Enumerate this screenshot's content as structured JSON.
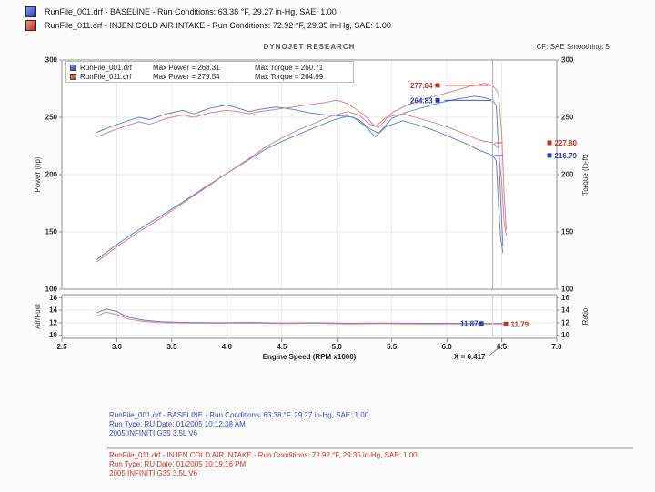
{
  "header": {
    "runs": [
      {
        "file": "RunFile_001.drf",
        "label": "BASELINE",
        "line": "RunFile_001.drf - BASELINE  -  Run Conditions: 63.38 °F, 29.27 in-Hg, SAE: 1.00",
        "color": "#2636b8"
      },
      {
        "file": "RunFile_011.drf",
        "label": "INJEN COLD AIR INTAKE",
        "line": "RunFile_011.drf - INJEN COLD AIR INTAKE  -  Run Conditions: 72.92 °F, 29.35 in-Hg, SAE: 1.00",
        "color": "#c02a1a"
      }
    ]
  },
  "chart_data": {
    "type": "line",
    "title": "DYNOJET RESEARCH",
    "correction_label": "CF: SAE   Smoothing: 5",
    "xlabel": "Engine Speed (RPM x1000)",
    "xlim": [
      2.5,
      7.0
    ],
    "xticks": [
      2.5,
      3.0,
      3.5,
      4.0,
      4.5,
      5.0,
      5.5,
      6.0,
      6.5,
      7.0
    ],
    "grid": true,
    "cursor": {
      "x": 6.417,
      "label": "X = 6.417"
    },
    "legend_box": {
      "rows": [
        {
          "file": "RunFile_001.drf",
          "power": "Max Power = 268.31",
          "torque": "Max Torque = 260.71",
          "color": "#2a3fbf"
        },
        {
          "file": "RunFile_011.drf",
          "power": "Max Power = 279.54",
          "torque": "Max Torque = 264.99",
          "color": "#c63326"
        }
      ]
    },
    "panels": [
      {
        "name": "power-torque",
        "ylabel_left": "Power (hp)",
        "ylabel_right": "Torque (lb-ft)",
        "ylim": [
          100,
          300
        ],
        "yticks": [
          300,
          250,
          200,
          150,
          100
        ],
        "series": [
          {
            "name": "baseline-power",
            "run": "RunFile_001.drf",
            "color": "#6b84c8",
            "points": [
              [
                2.82,
                126
              ],
              [
                3.0,
                139
              ],
              [
                3.2,
                152
              ],
              [
                3.4,
                164
              ],
              [
                3.6,
                176
              ],
              [
                3.8,
                189
              ],
              [
                4.0,
                201
              ],
              [
                4.2,
                213
              ],
              [
                4.35,
                222
              ],
              [
                4.5,
                229
              ],
              [
                4.65,
                235
              ],
              [
                4.8,
                241
              ],
              [
                4.95,
                247
              ],
              [
                5.1,
                251
              ],
              [
                5.2,
                248
              ],
              [
                5.3,
                240
              ],
              [
                5.38,
                236
              ],
              [
                5.5,
                249
              ],
              [
                5.65,
                255
              ],
              [
                5.8,
                259
              ],
              [
                5.95,
                263
              ],
              [
                6.1,
                266
              ],
              [
                6.25,
                268.3
              ],
              [
                6.35,
                267
              ],
              [
                6.417,
                264.8
              ],
              [
                6.45,
                260
              ],
              [
                6.47,
                225
              ],
              [
                6.49,
                180
              ],
              [
                6.51,
                138
              ]
            ]
          },
          {
            "name": "injen-power",
            "run": "RunFile_011.drf",
            "color": "#d08a8a",
            "points": [
              [
                2.82,
                124
              ],
              [
                3.0,
                137
              ],
              [
                3.2,
                150
              ],
              [
                3.4,
                162
              ],
              [
                3.6,
                175
              ],
              [
                3.8,
                188
              ],
              [
                4.0,
                201
              ],
              [
                4.2,
                214
              ],
              [
                4.35,
                224
              ],
              [
                4.5,
                232
              ],
              [
                4.65,
                239
              ],
              [
                4.8,
                245
              ],
              [
                4.95,
                251
              ],
              [
                5.1,
                255
              ],
              [
                5.2,
                252
              ],
              [
                5.3,
                244
              ],
              [
                5.38,
                241
              ],
              [
                5.5,
                254
              ],
              [
                5.65,
                261
              ],
              [
                5.8,
                266
              ],
              [
                5.95,
                270
              ],
              [
                6.1,
                274
              ],
              [
                6.25,
                278
              ],
              [
                6.35,
                279.5
              ],
              [
                6.417,
                277.8
              ],
              [
                6.47,
                271
              ],
              [
                6.5,
                235
              ],
              [
                6.52,
                185
              ],
              [
                6.54,
                152
              ]
            ]
          },
          {
            "name": "baseline-torque",
            "run": "RunFile_001.drf",
            "color": "#6b84c8",
            "points": [
              [
                2.82,
                237
              ],
              [
                2.95,
                242
              ],
              [
                3.1,
                247
              ],
              [
                3.2,
                250
              ],
              [
                3.3,
                248
              ],
              [
                3.45,
                253
              ],
              [
                3.6,
                256
              ],
              [
                3.7,
                253
              ],
              [
                3.85,
                258
              ],
              [
                4.0,
                260.7
              ],
              [
                4.1,
                258
              ],
              [
                4.2,
                255
              ],
              [
                4.3,
                257
              ],
              [
                4.45,
                259
              ],
              [
                4.6,
                257
              ],
              [
                4.75,
                254
              ],
              [
                4.9,
                252
              ],
              [
                5.05,
                251
              ],
              [
                5.15,
                250
              ],
              [
                5.25,
                243
              ],
              [
                5.35,
                233
              ],
              [
                5.45,
                242
              ],
              [
                5.6,
                247
              ],
              [
                5.75,
                243
              ],
              [
                5.9,
                238
              ],
              [
                6.05,
                232
              ],
              [
                6.2,
                226
              ],
              [
                6.3,
                221
              ],
              [
                6.417,
                216.8
              ],
              [
                6.45,
                212
              ],
              [
                6.47,
                175
              ],
              [
                6.49,
                145
              ],
              [
                6.51,
                132
              ]
            ]
          },
          {
            "name": "injen-torque",
            "run": "RunFile_011.drf",
            "color": "#d08a8a",
            "points": [
              [
                2.82,
                233
              ],
              [
                2.95,
                238
              ],
              [
                3.1,
                243
              ],
              [
                3.2,
                246
              ],
              [
                3.3,
                244
              ],
              [
                3.45,
                249
              ],
              [
                3.6,
                252
              ],
              [
                3.7,
                250
              ],
              [
                3.85,
                254
              ],
              [
                4.0,
                256
              ],
              [
                4.1,
                255
              ],
              [
                4.2,
                253
              ],
              [
                4.3,
                255
              ],
              [
                4.45,
                257
              ],
              [
                4.6,
                259
              ],
              [
                4.75,
                261
              ],
              [
                4.9,
                263
              ],
              [
                5.0,
                265
              ],
              [
                5.1,
                262
              ],
              [
                5.25,
                252
              ],
              [
                5.35,
                242
              ],
              [
                5.45,
                250
              ],
              [
                5.6,
                253
              ],
              [
                5.75,
                249
              ],
              [
                5.9,
                245
              ],
              [
                6.05,
                240
              ],
              [
                6.2,
                234
              ],
              [
                6.3,
                230
              ],
              [
                6.417,
                227.8
              ],
              [
                6.47,
                223
              ],
              [
                6.5,
                192
              ],
              [
                6.52,
                160
              ],
              [
                6.54,
                147
              ]
            ]
          }
        ],
        "cursor_labels": [
          {
            "text": "277.84",
            "value": 277.84,
            "color": "#c63326",
            "side": "left"
          },
          {
            "text": "264.83",
            "value": 264.83,
            "color": "#2a3fbf",
            "side": "left"
          },
          {
            "text": "227.80",
            "value": 227.8,
            "color": "#c63326",
            "side": "right"
          },
          {
            "text": "216.79",
            "value": 216.79,
            "color": "#2a3fbf",
            "side": "right"
          }
        ]
      },
      {
        "name": "air-fuel",
        "ylabel_left": "Air/Fuel",
        "ylabel_right": "Ratio",
        "ylim": [
          9.5,
          16.5
        ],
        "yticks": [
          16,
          14,
          12,
          10
        ],
        "series": [
          {
            "name": "baseline-afr",
            "run": "RunFile_001.drf",
            "color": "#6b84c8",
            "points": [
              [
                2.82,
                13.6
              ],
              [
                2.9,
                14.2
              ],
              [
                3.0,
                13.8
              ],
              [
                3.1,
                12.9
              ],
              [
                3.25,
                12.4
              ],
              [
                3.4,
                12.15
              ],
              [
                3.6,
                12.05
              ],
              [
                3.9,
                12.0
              ],
              [
                4.2,
                12.05
              ],
              [
                4.5,
                11.95
              ],
              [
                4.8,
                12.0
              ],
              [
                5.1,
                11.9
              ],
              [
                5.4,
                11.95
              ],
              [
                5.7,
                11.9
              ],
              [
                6.0,
                11.9
              ],
              [
                6.2,
                11.88
              ],
              [
                6.417,
                11.87
              ],
              [
                6.5,
                11.9
              ]
            ]
          },
          {
            "name": "injen-afr",
            "run": "RunFile_011.drf",
            "color": "#d08a8a",
            "points": [
              [
                2.82,
                13.1
              ],
              [
                2.9,
                13.7
              ],
              [
                3.0,
                13.3
              ],
              [
                3.1,
                12.6
              ],
              [
                3.25,
                12.2
              ],
              [
                3.4,
                12.0
              ],
              [
                3.6,
                11.95
              ],
              [
                3.9,
                11.9
              ],
              [
                4.2,
                11.95
              ],
              [
                4.5,
                11.85
              ],
              [
                4.8,
                11.9
              ],
              [
                5.1,
                11.8
              ],
              [
                5.4,
                11.85
              ],
              [
                5.7,
                11.8
              ],
              [
                6.0,
                11.8
              ],
              [
                6.2,
                11.8
              ],
              [
                6.417,
                11.79
              ],
              [
                6.55,
                11.8
              ]
            ]
          }
        ],
        "cursor_labels": [
          {
            "text": "11.87",
            "value": 11.87,
            "color": "#2a3fbf",
            "side": "left"
          },
          {
            "text": "11.79",
            "value": 11.79,
            "color": "#c63326",
            "side": "right"
          }
        ]
      }
    ]
  },
  "footer": {
    "blocks": [
      {
        "color": "#3a46c0",
        "lines": [
          "RunFile_001.drf - BASELINE  -  Run Conditions: 63.38 °F, 29.27 in-Hg, SAE: 1.00",
          "Run Type: RU   Date: 01/2005 10:12:38 AM",
          "2005 INFINITI G35 3.5L V6"
        ]
      },
      {
        "color": "#cc3426",
        "lines": [
          "RunFile_011.drf - INJEN COLD AIR INTAKE  -  Run Conditions: 72.92 °F, 29.35 in-Hg, SAE: 1.00",
          "Run Type: RU   Date: 01/2005 10:19:16 PM",
          "2005 INFINITI G35 3.5L V6"
        ]
      }
    ]
  }
}
